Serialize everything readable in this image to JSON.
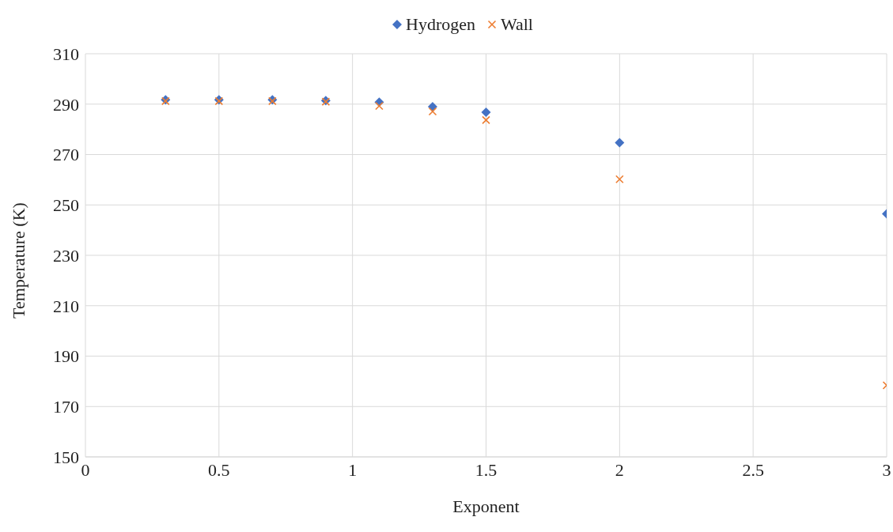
{
  "chart_data": {
    "type": "scatter",
    "xlabel": "Exponent",
    "ylabel": "Temperature (K)",
    "x": [
      0.3,
      0.5,
      0.7,
      0.9,
      1.1,
      1.3,
      1.5,
      2,
      3
    ],
    "series": [
      {
        "name": "Hydrogen",
        "color": "#4472c4",
        "marker": "diamond",
        "values": [
          291.7,
          291.7,
          291.7,
          291.4,
          290.8,
          289,
          286.8,
          274.7,
          246.5
        ]
      },
      {
        "name": "Wall",
        "color": "#ed7d31",
        "marker": "cross",
        "values": [
          291.2,
          291.2,
          291.2,
          291,
          289.3,
          287.1,
          283.7,
          260.2,
          178.4
        ]
      }
    ],
    "xlim": [
      0,
      3
    ],
    "xticks": [
      0,
      0.5,
      1,
      1.5,
      2,
      2.5,
      3
    ],
    "ylim": [
      150,
      310
    ],
    "yticks": [
      150,
      170,
      190,
      210,
      230,
      250,
      270,
      290,
      310
    ],
    "grid": true,
    "legend": "top"
  }
}
